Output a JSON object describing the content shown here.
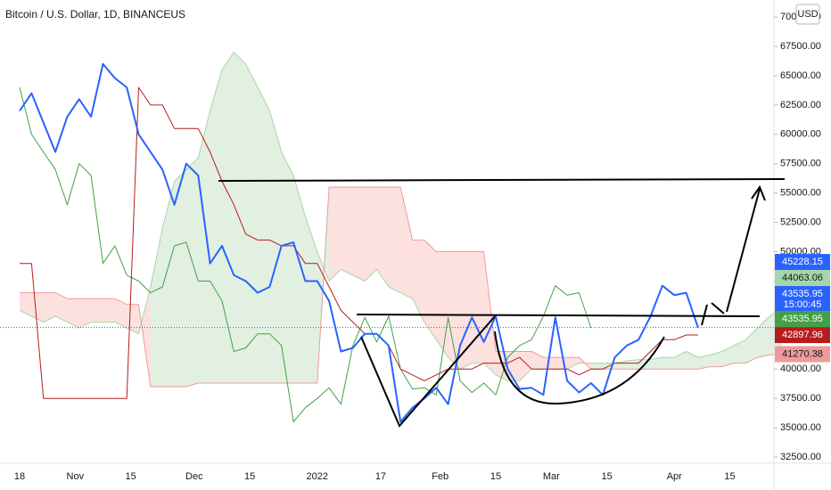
{
  "chart_data": {
    "type": "line",
    "title": "Bitcoin / U.S. Dollar, 1D, BINANCEUS",
    "currency": "USD",
    "xtick_labels": [
      "18",
      "Nov",
      "15",
      "Dec",
      "15",
      "2022",
      "17",
      "Feb",
      "15",
      "Mar",
      "15",
      "Apr",
      "15"
    ],
    "ylim": [
      31970,
      71450
    ],
    "yticks": [
      {
        "value": 32500,
        "label": "32500.00"
      },
      {
        "value": 35000,
        "label": "35000.00"
      },
      {
        "value": 37500,
        "label": "37500.00"
      },
      {
        "value": 40000,
        "label": "40000.00"
      },
      {
        "value": 42500,
        "label": "42500.00"
      },
      {
        "value": 45000,
        "label": "45000.00"
      },
      {
        "value": 47500,
        "label": "47500.00"
      },
      {
        "value": 50000,
        "label": "50000.00"
      },
      {
        "value": 52500,
        "label": "52500.00"
      },
      {
        "value": 55000,
        "label": "55000.00"
      },
      {
        "value": 57500,
        "label": "57500.00"
      },
      {
        "value": 60000,
        "label": "60000.00"
      },
      {
        "value": 62500,
        "label": "62500.00"
      },
      {
        "value": 65000,
        "label": "65000.00"
      },
      {
        "value": 67500,
        "label": "67500.00"
      },
      {
        "value": 70000,
        "label": "70000.00"
      }
    ],
    "grid": false,
    "series": [
      {
        "color": "#2962ff",
        "width": 2,
        "values": [
          62000,
          63500,
          61000,
          58500,
          61500,
          63000,
          61500,
          66000,
          64800,
          64000,
          60000,
          58500,
          57000,
          54000,
          57500,
          56500,
          49000,
          50500,
          48000,
          47500,
          46500,
          47000,
          50500,
          50800,
          47500,
          47500,
          45800,
          41500,
          41800,
          43000,
          43000,
          42000,
          35500,
          36700,
          37500,
          38400,
          37000,
          42000,
          44400,
          42300,
          44500,
          40000,
          38300,
          38400,
          37800,
          44400,
          39000,
          38000,
          38800,
          37800,
          41000,
          42000,
          42500,
          44500,
          47100,
          46300,
          46500,
          43500,
          null,
          null,
          null,
          null,
          null,
          null,
          null
        ]
      },
      {
        "color": "#b71c1c",
        "width": 1,
        "values": [
          49000,
          49000,
          37500,
          37500,
          37500,
          37500,
          37500,
          37500,
          37500,
          37500,
          64000,
          62500,
          62500,
          60500,
          60500,
          60500,
          58500,
          56000,
          54000,
          51500,
          51000,
          51000,
          50500,
          50500,
          49000,
          49000,
          47000,
          45000,
          44000,
          43000,
          43000,
          42000,
          40000,
          39500,
          39000,
          39500,
          40000,
          40000,
          40000,
          40500,
          40500,
          40500,
          41000,
          40000,
          40000,
          40000,
          40000,
          39500,
          40000,
          40000,
          40500,
          40500,
          40500,
          41500,
          42500,
          42500,
          42900,
          42900,
          null,
          null,
          null,
          null,
          null,
          null,
          null
        ]
      },
      {
        "color": "#43a047",
        "width": 1,
        "values": [
          64000,
          60000,
          58500,
          57000,
          54000,
          57500,
          56500,
          49000,
          50500,
          48000,
          47500,
          46500,
          47000,
          50500,
          50800,
          47500,
          47500,
          45800,
          41500,
          41800,
          43000,
          43000,
          42000,
          35500,
          36700,
          37500,
          38400,
          37000,
          42000,
          44400,
          42300,
          44500,
          40000,
          38300,
          38400,
          37800,
          44400,
          39000,
          38000,
          38800,
          37800,
          41000,
          42000,
          42500,
          44500,
          47100,
          46300,
          46500,
          43500,
          null,
          null,
          null,
          null,
          null,
          null,
          null,
          null,
          null,
          null,
          null,
          null,
          null,
          null,
          null,
          null
        ]
      },
      {
        "color": "#a5d6a7",
        "width": 1,
        "values": [
          45000,
          44500,
          44000,
          44500,
          44000,
          43500,
          44000,
          44000,
          44000,
          43500,
          43000,
          47000,
          52000,
          56000,
          57000,
          58000,
          62000,
          65500,
          67000,
          66000,
          64000,
          62000,
          58500,
          56500,
          53000,
          50000,
          47500,
          48500,
          48000,
          47500,
          48500,
          47000,
          46500,
          46000,
          44000,
          42500,
          41000,
          40000,
          40500,
          40500,
          39500,
          39000,
          39000,
          40000,
          40000,
          40000,
          40000,
          40500,
          40500,
          40500,
          40500,
          40700,
          40800,
          40800,
          41000,
          41000,
          41500,
          41000,
          41200,
          41500,
          42000,
          42500,
          43500,
          44500,
          45200
        ]
      },
      {
        "color": "#ef9a9a",
        "width": 1,
        "values": [
          46500,
          46500,
          46500,
          46500,
          46000,
          46000,
          46000,
          46000,
          46000,
          45500,
          45500,
          38500,
          38500,
          38500,
          38500,
          38800,
          38800,
          38800,
          38800,
          38800,
          38800,
          38800,
          38800,
          38800,
          38800,
          38800,
          55500,
          55500,
          55500,
          55500,
          55500,
          55500,
          55500,
          51000,
          51000,
          50000,
          50000,
          50000,
          50000,
          50000,
          41500,
          41500,
          41500,
          41500,
          41000,
          41000,
          41000,
          41000,
          40000,
          40000,
          40000,
          40000,
          40000,
          40000,
          40000,
          40000,
          40000,
          40000,
          40200,
          40200,
          40500,
          40500,
          41000,
          41200,
          41300
        ]
      }
    ],
    "cloud_colors": {
      "up": "rgba(67,160,71,0.16)",
      "down": "rgba(244,67,54,0.16)"
    },
    "price_tags": [
      {
        "value": 45228.15,
        "color": "#2962ff",
        "text_color": "#ffffff"
      },
      {
        "value": 44063.06,
        "color": "#a5d6a7",
        "text_color": "#131722"
      },
      {
        "value": 43535.95,
        "color": "#2962ff",
        "text_color": "#ffffff",
        "countdown": "15:00:45"
      },
      {
        "value": 43535.95,
        "color": "#43a047",
        "text_color": "#ffffff"
      },
      {
        "value": 42897.96,
        "color": "#b71c1c",
        "text_color": "#ffffff"
      },
      {
        "value": 41270.38,
        "color": "#ef9a9a",
        "text_color": "#131722"
      }
    ]
  }
}
